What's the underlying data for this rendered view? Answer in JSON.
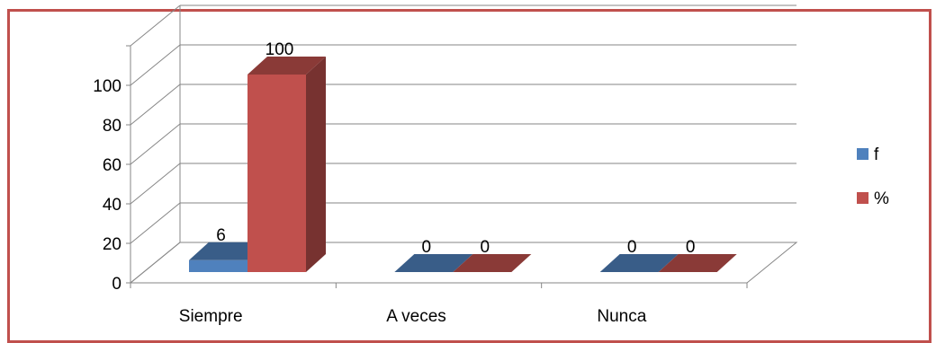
{
  "chart_data": {
    "type": "bar",
    "style": "3d-clustered-column",
    "categories": [
      "Siempre",
      "A veces",
      "Nunca"
    ],
    "series": [
      {
        "name": "f",
        "values": [
          6,
          0,
          0
        ],
        "color": "#4f81bd"
      },
      {
        "name": "%",
        "values": [
          100,
          0,
          0
        ],
        "color": "#c0504d"
      }
    ],
    "yticks": [
      "0",
      "20",
      "40",
      "60",
      "80",
      "100"
    ],
    "ylim": [
      0,
      120
    ],
    "grid": true,
    "legend": "right",
    "data_labels": [
      [
        "6",
        "0",
        "0"
      ],
      [
        "100",
        "0",
        "0"
      ]
    ]
  },
  "colors": {
    "border": "#c0504d",
    "grid": "#868686"
  }
}
